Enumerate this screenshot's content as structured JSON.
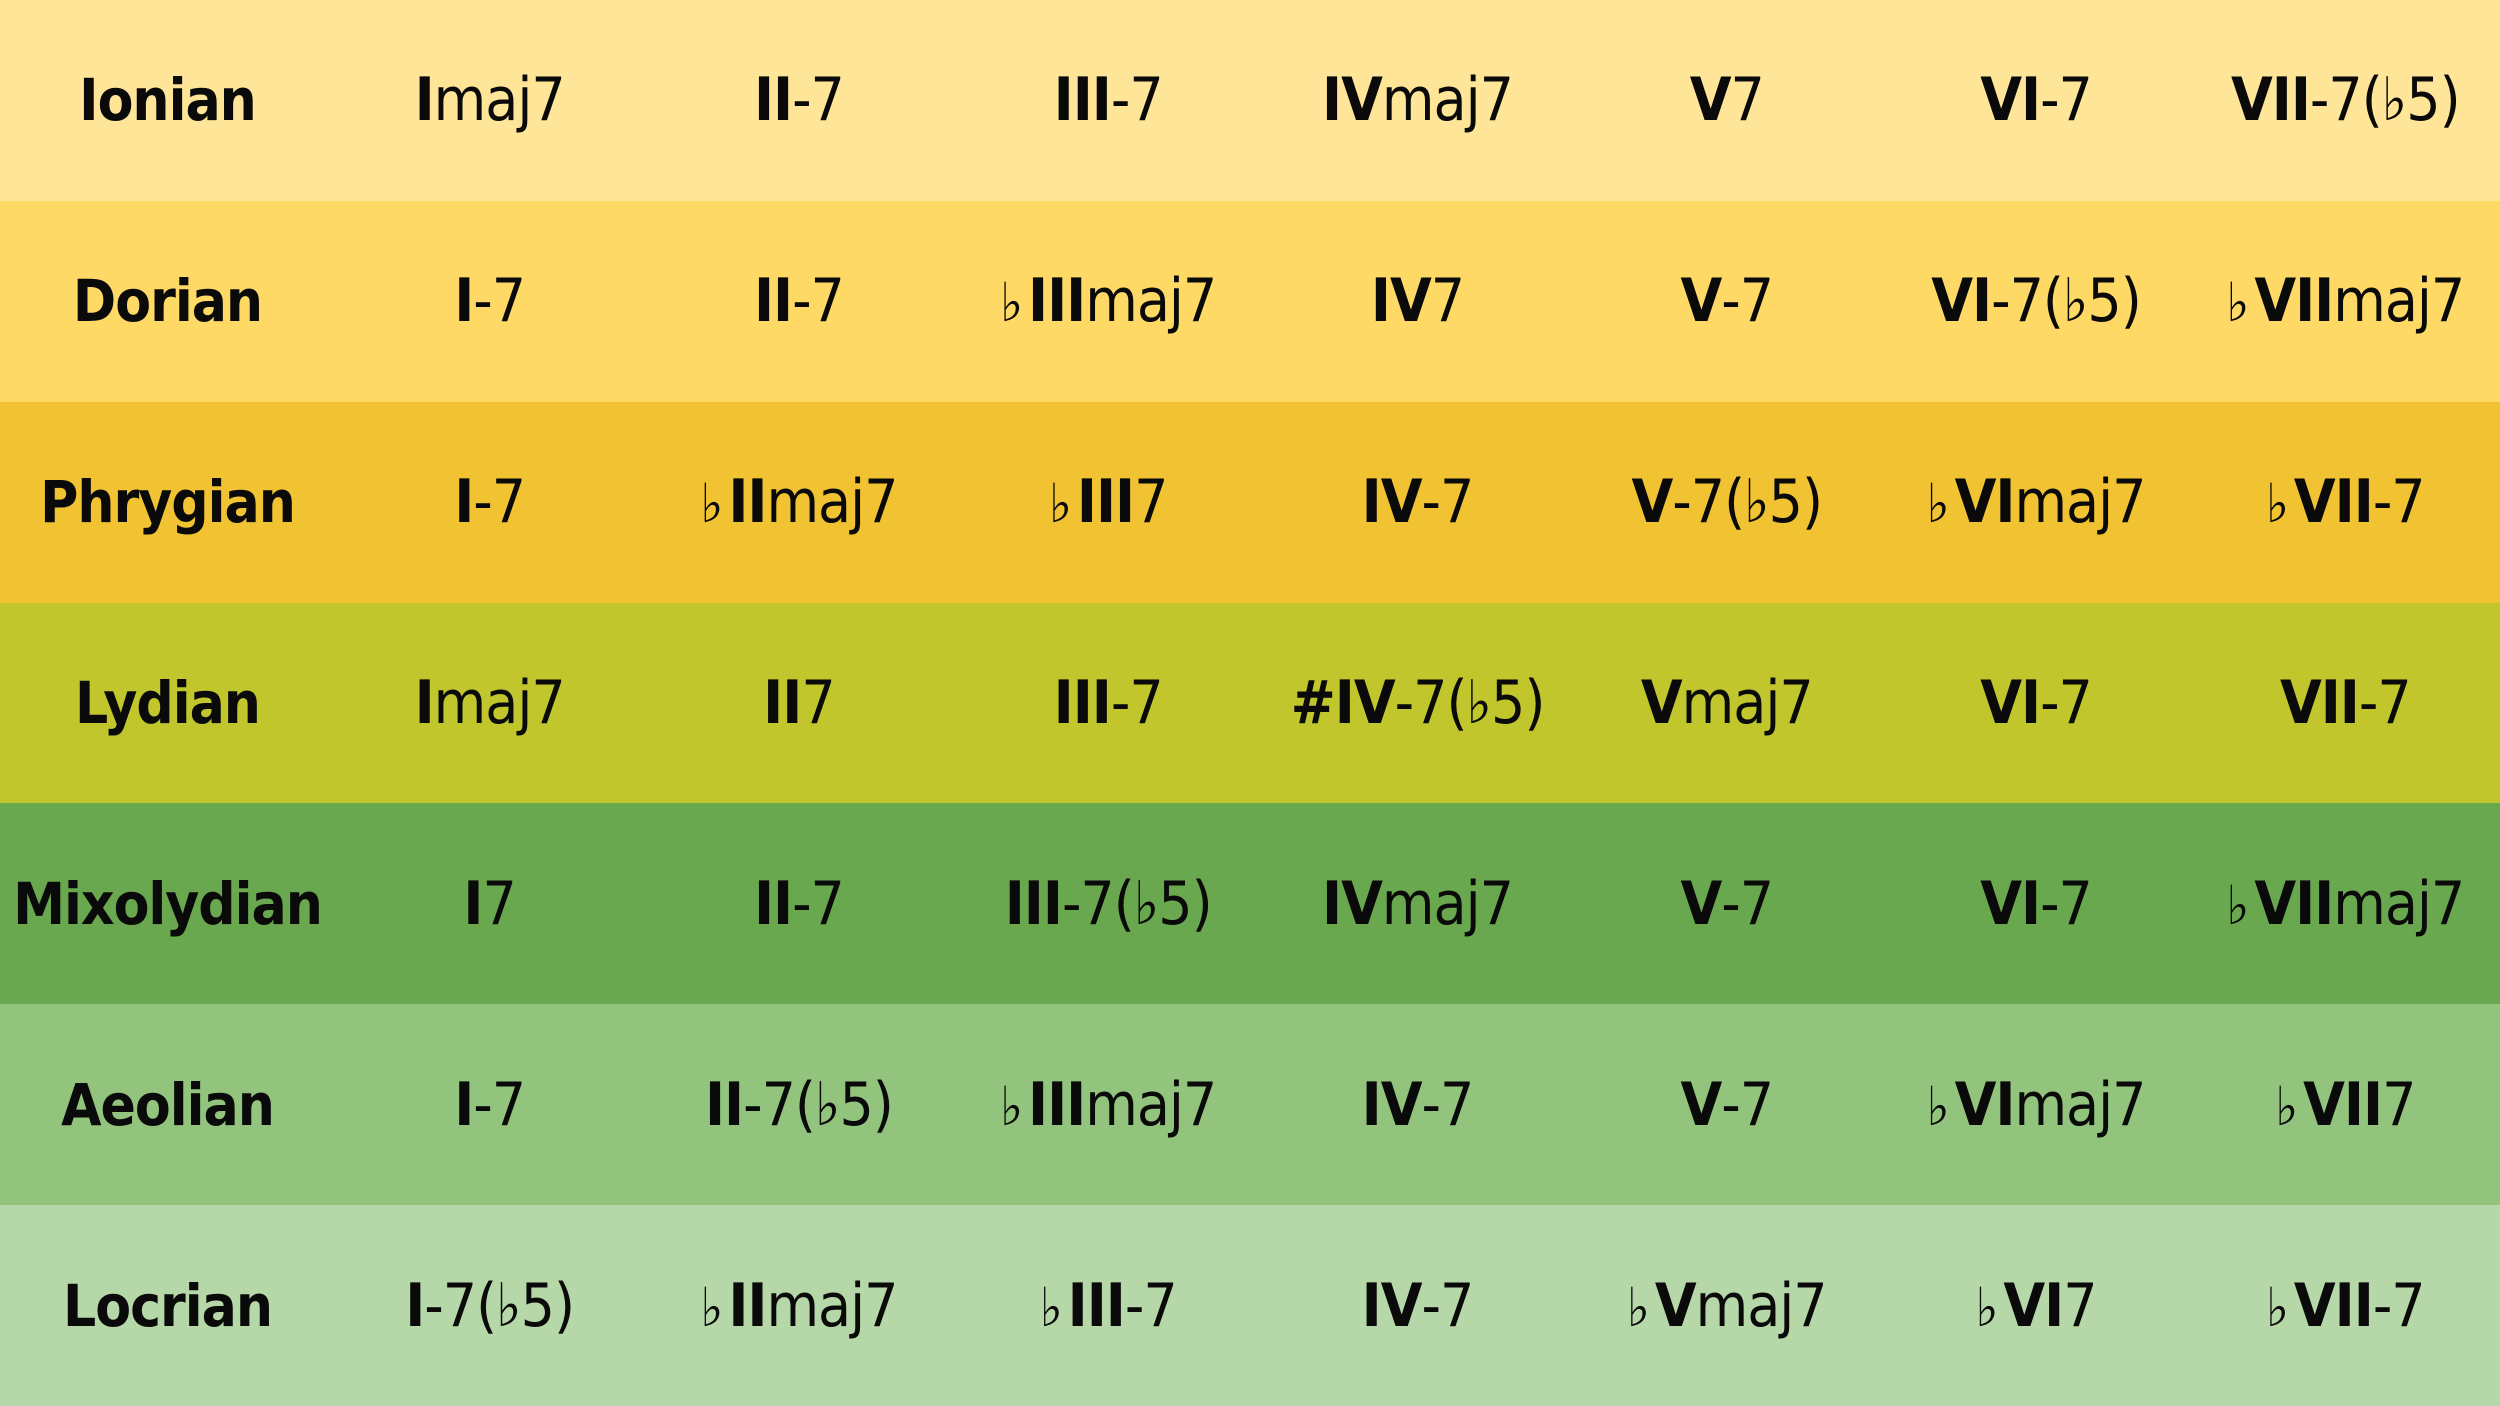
{
  "modes": [
    {
      "name": "Ionian",
      "bg": "#ffe597",
      "chords": [
        {
          "flat": "",
          "numeral": "I",
          "quality": "maj7"
        },
        {
          "flat": "",
          "numeral": "II",
          "quality": "-7"
        },
        {
          "flat": "",
          "numeral": "III",
          "quality": "-7"
        },
        {
          "flat": "",
          "numeral": "IV",
          "quality": "maj7"
        },
        {
          "flat": "",
          "numeral": "V",
          "quality": "7"
        },
        {
          "flat": "",
          "numeral": "VI",
          "quality": "-7"
        },
        {
          "flat": "",
          "numeral": "VII",
          "quality": "-7(♭5)"
        }
      ]
    },
    {
      "name": "Dorian",
      "bg": "#ffd966",
      "chords": [
        {
          "flat": "",
          "numeral": "I",
          "quality": "-7"
        },
        {
          "flat": "",
          "numeral": "II",
          "quality": "-7"
        },
        {
          "flat": "♭",
          "numeral": "III",
          "quality": "maj7"
        },
        {
          "flat": "",
          "numeral": "IV",
          "quality": "7"
        },
        {
          "flat": "",
          "numeral": "V",
          "quality": "-7"
        },
        {
          "flat": "",
          "numeral": "VI",
          "quality": "-7(♭5)"
        },
        {
          "flat": "♭",
          "numeral": "VII",
          "quality": "maj7"
        }
      ]
    },
    {
      "name": "Phrygian",
      "bg": "#f1c232",
      "chords": [
        {
          "flat": "",
          "numeral": "I",
          "quality": "-7"
        },
        {
          "flat": "♭",
          "numeral": "II",
          "quality": "maj7"
        },
        {
          "flat": "♭",
          "numeral": "III",
          "quality": "7"
        },
        {
          "flat": "",
          "numeral": "IV",
          "quality": "-7"
        },
        {
          "flat": "",
          "numeral": "V",
          "quality": "-7(♭5)"
        },
        {
          "flat": "♭",
          "numeral": "VI",
          "quality": "maj7"
        },
        {
          "flat": "♭",
          "numeral": "VII",
          "quality": "-7"
        }
      ]
    },
    {
      "name": "Lydian",
      "bg": "#c0c62c",
      "chords": [
        {
          "flat": "",
          "numeral": "I",
          "quality": "maj7"
        },
        {
          "flat": "",
          "numeral": "II",
          "quality": "7"
        },
        {
          "flat": "",
          "numeral": "III",
          "quality": "-7"
        },
        {
          "flat": "#",
          "numeral": "IV",
          "quality": "-7(♭5)"
        },
        {
          "flat": "",
          "numeral": "V",
          "quality": "maj7"
        },
        {
          "flat": "",
          "numeral": "VI",
          "quality": "-7"
        },
        {
          "flat": "",
          "numeral": "VII",
          "quality": "-7"
        }
      ]
    },
    {
      "name": "Mixolydian",
      "bg": "#6aa84f",
      "chords": [
        {
          "flat": "",
          "numeral": "I",
          "quality": "7"
        },
        {
          "flat": "",
          "numeral": "II",
          "quality": "-7"
        },
        {
          "flat": "",
          "numeral": "III",
          "quality": "-7(♭5)"
        },
        {
          "flat": "",
          "numeral": "IV",
          "quality": "maj7"
        },
        {
          "flat": "",
          "numeral": "V",
          "quality": "-7"
        },
        {
          "flat": "",
          "numeral": "VI",
          "quality": "-7"
        },
        {
          "flat": "♭",
          "numeral": "VII",
          "quality": "maj7"
        }
      ]
    },
    {
      "name": "Aeolian",
      "bg": "#93c47d",
      "chords": [
        {
          "flat": "",
          "numeral": "I",
          "quality": "-7"
        },
        {
          "flat": "",
          "numeral": "II",
          "quality": "-7(♭5)"
        },
        {
          "flat": "♭",
          "numeral": "III",
          "quality": "maj7"
        },
        {
          "flat": "",
          "numeral": "IV",
          "quality": "-7"
        },
        {
          "flat": "",
          "numeral": "V",
          "quality": "-7"
        },
        {
          "flat": "♭",
          "numeral": "VI",
          "quality": "maj7"
        },
        {
          "flat": "♭",
          "numeral": "VII",
          "quality": "7"
        }
      ]
    },
    {
      "name": "Locrian",
      "bg": "#b6d7a8",
      "chords": [
        {
          "flat": "",
          "numeral": "I",
          "quality": "-7(♭5)"
        },
        {
          "flat": "♭",
          "numeral": "II",
          "quality": "maj7"
        },
        {
          "flat": "♭",
          "numeral": "III",
          "quality": "-7"
        },
        {
          "flat": "",
          "numeral": "IV",
          "quality": "-7"
        },
        {
          "flat": "♭",
          "numeral": "V",
          "quality": "maj7"
        },
        {
          "flat": "♭",
          "numeral": "VI",
          "quality": "7"
        },
        {
          "flat": "♭",
          "numeral": "VII",
          "quality": "-7"
        }
      ]
    }
  ]
}
